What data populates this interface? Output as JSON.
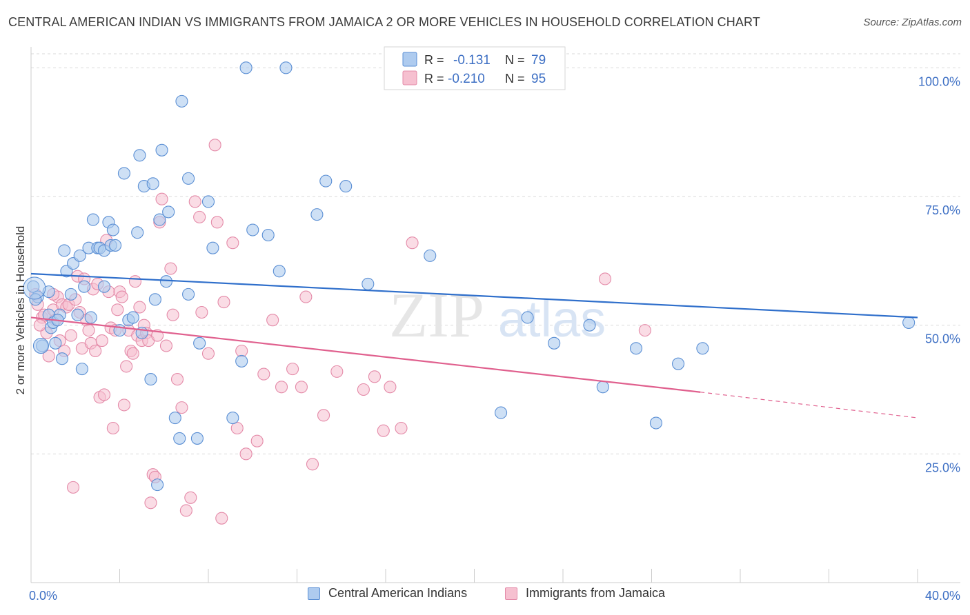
{
  "title": "CENTRAL AMERICAN INDIAN VS IMMIGRANTS FROM JAMAICA 2 OR MORE VEHICLES IN HOUSEHOLD CORRELATION CHART",
  "source": "Source: ZipAtlas.com",
  "watermark": {
    "zip": "ZIP",
    "atlas": "atlas"
  },
  "colors": {
    "blue_fill": "#aecbef",
    "blue_stroke": "#5b8fd4",
    "blue_line": "#2f6fcb",
    "pink_fill": "#f6c0d0",
    "pink_stroke": "#e48aa8",
    "pink_line": "#e0608e",
    "axis_text": "#3d6fc4",
    "grid": "#d9d9d9"
  },
  "legend": {
    "rows": [
      {
        "r_label": "R =",
        "r_value": "-0.131",
        "n_label": "N =",
        "n_value": "79"
      },
      {
        "r_label": "R =",
        "r_value": "-0.210",
        "n_label": "N =",
        "n_value": "95"
      }
    ]
  },
  "bottom_legend": {
    "series1": "Central American Indians",
    "series2": "Immigrants from Jamaica"
  },
  "chart_data": {
    "type": "scatter",
    "title": "CENTRAL AMERICAN INDIAN VS IMMIGRANTS FROM JAMAICA 2 OR MORE VEHICLES IN HOUSEHOLD CORRELATION CHART",
    "xlabel": "",
    "ylabel": "2 or more Vehicles in Household",
    "xlim": [
      0,
      40
    ],
    "ylim": [
      0,
      105
    ],
    "x_tick_labels": [
      "0.0%",
      "40.0%"
    ],
    "y_tick_labels": [
      "25.0%",
      "50.0%",
      "75.0%",
      "100.0%"
    ],
    "y_ticks": [
      25,
      50,
      75,
      100
    ],
    "grid": true,
    "legend_position": "top-center",
    "series": [
      {
        "name": "Central American Indians",
        "r": -0.131,
        "n": 79,
        "trend": {
          "x": [
            0,
            40
          ],
          "y": [
            60.0,
            51.5
          ]
        },
        "points": [
          [
            0.1,
            57.5
          ],
          [
            0.3,
            55.5
          ],
          [
            0.5,
            46
          ],
          [
            0.8,
            56.5
          ],
          [
            0.8,
            52
          ],
          [
            0.9,
            49.5
          ],
          [
            1.0,
            50.5
          ],
          [
            1.1,
            46.5
          ],
          [
            1.3,
            52
          ],
          [
            1.4,
            43.5
          ],
          [
            1.5,
            64.5
          ],
          [
            1.6,
            60.5
          ],
          [
            1.8,
            56
          ],
          [
            1.9,
            62
          ],
          [
            2.1,
            52
          ],
          [
            2.2,
            63.5
          ],
          [
            2.3,
            41.5
          ],
          [
            2.4,
            57.5
          ],
          [
            2.6,
            65
          ],
          [
            2.7,
            51.5
          ],
          [
            2.8,
            70.5
          ],
          [
            3.0,
            65
          ],
          [
            3.1,
            65
          ],
          [
            3.3,
            57.5
          ],
          [
            3.3,
            64.5
          ],
          [
            3.5,
            70
          ],
          [
            3.6,
            65.5
          ],
          [
            3.7,
            68.5
          ],
          [
            3.8,
            65.5
          ],
          [
            4.0,
            49
          ],
          [
            4.2,
            79.5
          ],
          [
            4.4,
            51
          ],
          [
            4.6,
            51.5
          ],
          [
            4.8,
            68
          ],
          [
            4.9,
            83
          ],
          [
            5.0,
            48.5
          ],
          [
            5.1,
            77
          ],
          [
            5.4,
            39.5
          ],
          [
            5.5,
            77.5
          ],
          [
            5.6,
            55
          ],
          [
            5.7,
            19
          ],
          [
            5.8,
            70.5
          ],
          [
            5.9,
            84
          ],
          [
            6.1,
            58.5
          ],
          [
            6.2,
            72
          ],
          [
            6.5,
            32
          ],
          [
            6.7,
            28
          ],
          [
            6.8,
            93.5
          ],
          [
            7.1,
            56
          ],
          [
            7.1,
            78.5
          ],
          [
            7.5,
            28
          ],
          [
            7.6,
            46.5
          ],
          [
            8.0,
            74
          ],
          [
            8.2,
            65
          ],
          [
            9.1,
            32
          ],
          [
            9.5,
            43
          ],
          [
            9.7,
            100
          ],
          [
            10.0,
            68.5
          ],
          [
            10.7,
            67.5
          ],
          [
            11.2,
            60.5
          ],
          [
            11.5,
            100
          ],
          [
            12.9,
            71.5
          ],
          [
            13.3,
            78
          ],
          [
            14.2,
            77
          ],
          [
            15.2,
            58
          ],
          [
            16.3,
            99.5
          ],
          [
            18.0,
            63.5
          ],
          [
            21.2,
            33
          ],
          [
            22.4,
            51.5
          ],
          [
            23.6,
            46.5
          ],
          [
            25.2,
            50
          ],
          [
            25.8,
            38
          ],
          [
            27.3,
            45.5
          ],
          [
            28.2,
            31
          ],
          [
            29.2,
            42.5
          ],
          [
            30.3,
            45.5
          ],
          [
            39.6,
            50.5
          ],
          [
            0.2,
            55
          ],
          [
            1.2,
            51
          ]
        ]
      },
      {
        "name": "Immigrants from Jamaica",
        "r": -0.21,
        "n": 95,
        "trend": {
          "x": [
            0,
            30.2
          ],
          "y": [
            51.5,
            37.0
          ]
        },
        "trend_extension": {
          "x": [
            30.2,
            40
          ],
          "y": [
            37.0,
            32.0
          ]
        },
        "points": [
          [
            0.2,
            56
          ],
          [
            0.3,
            54
          ],
          [
            0.5,
            51.5
          ],
          [
            0.6,
            52
          ],
          [
            0.7,
            48.5
          ],
          [
            0.8,
            44
          ],
          [
            1.0,
            53
          ],
          [
            1.1,
            51
          ],
          [
            1.2,
            55.5
          ],
          [
            1.3,
            47
          ],
          [
            1.4,
            54
          ],
          [
            1.5,
            45
          ],
          [
            1.6,
            53.5
          ],
          [
            1.7,
            54
          ],
          [
            1.8,
            48
          ],
          [
            1.9,
            18.5
          ],
          [
            2.0,
            55
          ],
          [
            2.1,
            59.5
          ],
          [
            2.2,
            52.5
          ],
          [
            2.3,
            45.5
          ],
          [
            2.4,
            59
          ],
          [
            2.5,
            51
          ],
          [
            2.6,
            49
          ],
          [
            2.7,
            46.5
          ],
          [
            2.8,
            57
          ],
          [
            2.9,
            45
          ],
          [
            3.0,
            58
          ],
          [
            3.1,
            36
          ],
          [
            3.2,
            47
          ],
          [
            3.3,
            36.5
          ],
          [
            3.4,
            66.5
          ],
          [
            3.5,
            56.5
          ],
          [
            3.6,
            49.5
          ],
          [
            3.7,
            30
          ],
          [
            3.8,
            49
          ],
          [
            3.9,
            53
          ],
          [
            4.0,
            56.5
          ],
          [
            4.1,
            55.5
          ],
          [
            4.2,
            34.5
          ],
          [
            4.3,
            42
          ],
          [
            4.4,
            49
          ],
          [
            4.5,
            45
          ],
          [
            4.6,
            44.5
          ],
          [
            4.7,
            58.5
          ],
          [
            4.8,
            48
          ],
          [
            4.9,
            53.5
          ],
          [
            5.0,
            47
          ],
          [
            5.1,
            50
          ],
          [
            5.2,
            48.5
          ],
          [
            5.3,
            47
          ],
          [
            5.4,
            15.5
          ],
          [
            5.5,
            21
          ],
          [
            5.6,
            20.5
          ],
          [
            5.7,
            48
          ],
          [
            5.8,
            70
          ],
          [
            5.9,
            74.5
          ],
          [
            6.1,
            46
          ],
          [
            6.3,
            61
          ],
          [
            6.4,
            52
          ],
          [
            6.6,
            39.5
          ],
          [
            6.8,
            34
          ],
          [
            7.0,
            14
          ],
          [
            7.2,
            16.5
          ],
          [
            7.4,
            74
          ],
          [
            7.6,
            71
          ],
          [
            7.7,
            52.5
          ],
          [
            8.0,
            44.5
          ],
          [
            8.3,
            85
          ],
          [
            8.4,
            70
          ],
          [
            8.6,
            12.5
          ],
          [
            8.7,
            54.5
          ],
          [
            9.1,
            66
          ],
          [
            9.3,
            30
          ],
          [
            9.5,
            45
          ],
          [
            9.7,
            25
          ],
          [
            10.2,
            27.5
          ],
          [
            10.5,
            40.5
          ],
          [
            10.9,
            51
          ],
          [
            11.3,
            38
          ],
          [
            11.8,
            41.5
          ],
          [
            12.2,
            38
          ],
          [
            12.4,
            55.5
          ],
          [
            12.7,
            23
          ],
          [
            13.2,
            32.5
          ],
          [
            13.8,
            41
          ],
          [
            15.0,
            37.5
          ],
          [
            15.5,
            40
          ],
          [
            15.9,
            29.5
          ],
          [
            16.2,
            38
          ],
          [
            16.7,
            30
          ],
          [
            17.2,
            66
          ],
          [
            25.9,
            59
          ],
          [
            27.7,
            49
          ],
          [
            0.4,
            50
          ],
          [
            1.0,
            56
          ]
        ]
      }
    ]
  }
}
